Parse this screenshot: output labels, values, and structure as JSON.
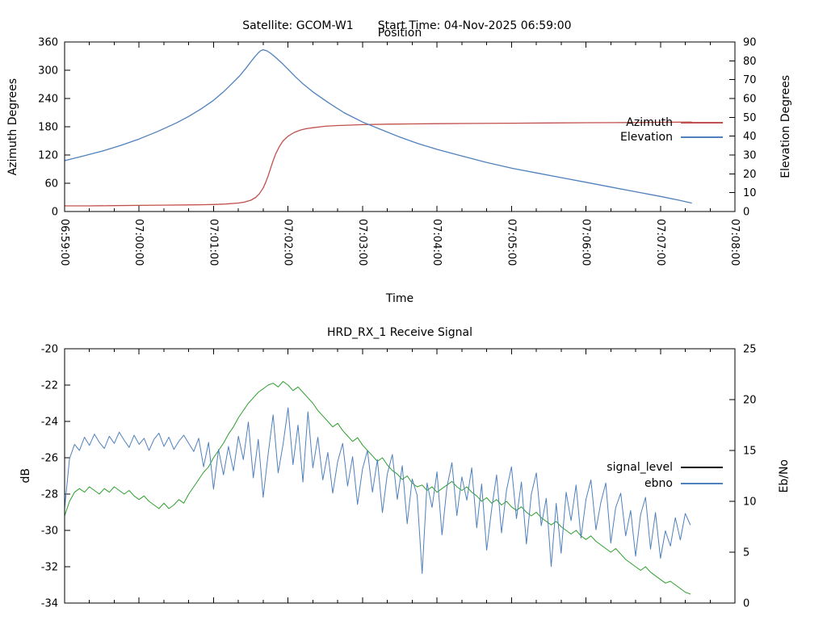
{
  "header": {
    "satellite_label": "Satellite: GCOM-W1",
    "start_time_label": "Start Time: 04-Nov-2025 06:59:00"
  },
  "colors": {
    "azimuth": "#c0504d",
    "elevation": "#4f81bd",
    "signal_level": "#2ca02c",
    "signal_level_legend": "#000000",
    "ebno": "#4f81bd",
    "axis": "#000000",
    "background": "#ffffff"
  },
  "chart_data": [
    {
      "type": "line",
      "title": "Position",
      "xlabel": "Time",
      "ylabel_left": "Azimuth Degrees",
      "ylabel_right": "Elevation Degrees",
      "x_range_seconds": [
        0,
        540
      ],
      "x_major_tick_seconds": 60,
      "x_minor_tick_seconds": 20,
      "x_tick_labels": [
        "06:59:00",
        "07:00:00",
        "07:01:00",
        "07:02:00",
        "07:03:00",
        "07:04:00",
        "07:05:00",
        "07:06:00",
        "07:07:00",
        "07:08:00"
      ],
      "show_x_tick_labels": true,
      "y_left_range": [
        0,
        360
      ],
      "y_left_ticks": [
        0,
        60,
        120,
        180,
        240,
        300,
        360
      ],
      "y_right_range": [
        0,
        90
      ],
      "y_right_ticks": [
        0,
        10,
        20,
        30,
        40,
        50,
        60,
        70,
        80,
        90
      ],
      "legend": [
        {
          "label": "Azimuth",
          "color": "#c0504d"
        },
        {
          "label": "Elevation",
          "color": "#4f81bd"
        }
      ],
      "series": [
        {
          "name": "Azimuth",
          "axis": "left",
          "color": "#c0504d",
          "points": [
            [
              0,
              12
            ],
            [
              20,
              12
            ],
            [
              40,
              12.5
            ],
            [
              60,
              13
            ],
            [
              80,
              13.5
            ],
            [
              100,
              14
            ],
            [
              110,
              14.4
            ],
            [
              120,
              15
            ],
            [
              130,
              16
            ],
            [
              140,
              18
            ],
            [
              145,
              20
            ],
            [
              150,
              24
            ],
            [
              154,
              30
            ],
            [
              157,
              38
            ],
            [
              160,
              50
            ],
            [
              162,
              62
            ],
            [
              164,
              76
            ],
            [
              166,
              92
            ],
            [
              168,
              108
            ],
            [
              170,
              122
            ],
            [
              173,
              138
            ],
            [
              176,
              150
            ],
            [
              180,
              160
            ],
            [
              185,
              168
            ],
            [
              190,
              173
            ],
            [
              195,
              176
            ],
            [
              200,
              178
            ],
            [
              210,
              181
            ],
            [
              220,
              182.5
            ],
            [
              230,
              183.5
            ],
            [
              240,
              184.5
            ],
            [
              260,
              185.5
            ],
            [
              280,
              186
            ],
            [
              300,
              186.5
            ],
            [
              330,
              187
            ],
            [
              360,
              187.5
            ],
            [
              390,
              188
            ],
            [
              420,
              188.5
            ],
            [
              450,
              189
            ],
            [
              480,
              189.5
            ],
            [
              505,
              190
            ]
          ]
        },
        {
          "name": "Elevation",
          "axis": "right",
          "color": "#4f81bd",
          "points": [
            [
              0,
              27
            ],
            [
              15,
              29.5
            ],
            [
              30,
              32
            ],
            [
              45,
              35
            ],
            [
              60,
              38.5
            ],
            [
              75,
              42.5
            ],
            [
              90,
              47
            ],
            [
              100,
              50.5
            ],
            [
              110,
              54.5
            ],
            [
              120,
              59
            ],
            [
              128,
              63.5
            ],
            [
              135,
              68
            ],
            [
              141,
              72
            ],
            [
              146,
              76
            ],
            [
              150,
              79.5
            ],
            [
              153,
              82
            ],
            [
              156,
              84.2
            ],
            [
              158,
              85.4
            ],
            [
              160,
              85.9
            ],
            [
              163,
              85.3
            ],
            [
              166,
              84
            ],
            [
              170,
              81.8
            ],
            [
              175,
              78.8
            ],
            [
              180,
              75.5
            ],
            [
              186,
              71.5
            ],
            [
              192,
              67.8
            ],
            [
              200,
              63.5
            ],
            [
              212,
              58
            ],
            [
              225,
              52.5
            ],
            [
              240,
              47.5
            ],
            [
              255,
              43.5
            ],
            [
              270,
              39.5
            ],
            [
              285,
              36
            ],
            [
              300,
              33
            ],
            [
              320,
              29.5
            ],
            [
              340,
              26
            ],
            [
              360,
              23
            ],
            [
              380,
              20.5
            ],
            [
              400,
              18
            ],
            [
              420,
              15.5
            ],
            [
              440,
              13
            ],
            [
              460,
              10.5
            ],
            [
              480,
              8
            ],
            [
              495,
              6
            ],
            [
              505,
              4.5
            ]
          ]
        }
      ]
    },
    {
      "type": "line",
      "title": "HRD_RX_1 Receive Signal",
      "xlabel": "",
      "ylabel_left": "dB",
      "ylabel_right": "Eb/No",
      "x_range_seconds": [
        0,
        540
      ],
      "x_major_tick_seconds": 60,
      "x_minor_tick_seconds": 20,
      "x_tick_labels": [],
      "show_x_tick_labels": false,
      "y_left_range": [
        -34,
        -20
      ],
      "y_left_ticks": [
        -34,
        -32,
        -30,
        -28,
        -26,
        -24,
        -22,
        -20
      ],
      "y_right_range": [
        0,
        25
      ],
      "y_right_ticks": [
        0,
        5,
        10,
        15,
        20,
        25
      ],
      "legend": [
        {
          "label": "signal_level",
          "color": "#000000"
        },
        {
          "label": "ebno",
          "color": "#4f81bd"
        }
      ],
      "series": [
        {
          "name": "signal_level",
          "axis": "left",
          "color": "#2ca02c",
          "t0": 0,
          "dt": 4,
          "values": [
            -29.2,
            -28.4,
            -27.9,
            -27.7,
            -27.9,
            -27.6,
            -27.8,
            -28.0,
            -27.7,
            -27.9,
            -27.6,
            -27.8,
            -28.0,
            -27.8,
            -28.1,
            -28.3,
            -28.1,
            -28.4,
            -28.6,
            -28.8,
            -28.5,
            -28.8,
            -28.6,
            -28.3,
            -28.5,
            -28.0,
            -27.6,
            -27.2,
            -26.8,
            -26.5,
            -26.0,
            -25.6,
            -25.2,
            -24.7,
            -24.3,
            -23.8,
            -23.4,
            -23.0,
            -22.7,
            -22.4,
            -22.2,
            -22.0,
            -21.9,
            -22.1,
            -21.8,
            -22.0,
            -22.3,
            -22.1,
            -22.4,
            -22.7,
            -23.0,
            -23.4,
            -23.7,
            -24.0,
            -24.3,
            -24.1,
            -24.5,
            -24.8,
            -25.1,
            -24.9,
            -25.3,
            -25.6,
            -25.9,
            -26.2,
            -26.0,
            -26.4,
            -26.7,
            -26.9,
            -27.2,
            -27.0,
            -27.4,
            -27.6,
            -27.5,
            -27.8,
            -27.6,
            -27.9,
            -27.7,
            -27.5,
            -27.3,
            -27.6,
            -27.8,
            -27.6,
            -27.9,
            -28.1,
            -28.4,
            -28.2,
            -28.5,
            -28.3,
            -28.6,
            -28.4,
            -28.7,
            -28.9,
            -28.7,
            -29.0,
            -29.2,
            -29.0,
            -29.3,
            -29.5,
            -29.7,
            -29.5,
            -29.8,
            -30.0,
            -30.2,
            -30.0,
            -30.3,
            -30.5,
            -30.3,
            -30.6,
            -30.8,
            -31.0,
            -31.2,
            -31.0,
            -31.3,
            -31.6,
            -31.8,
            -32.0,
            -32.2,
            -32.0,
            -32.3,
            -32.5,
            -32.7,
            -32.9,
            -32.8,
            -33.0,
            -33.2,
            -33.4,
            -33.5
          ]
        },
        {
          "name": "ebno",
          "axis": "right",
          "color": "#4f81bd",
          "t0": 0,
          "dt": 4,
          "values": [
            9.3,
            14.2,
            15.6,
            15.0,
            16.3,
            15.5,
            16.6,
            15.8,
            15.2,
            16.4,
            15.7,
            16.8,
            16.0,
            15.3,
            16.5,
            15.6,
            16.2,
            15.0,
            16.1,
            16.7,
            15.4,
            16.3,
            15.1,
            15.9,
            16.5,
            15.7,
            14.9,
            16.2,
            13.4,
            15.8,
            11.2,
            15.1,
            12.6,
            15.4,
            13.0,
            16.4,
            14.1,
            17.8,
            12.3,
            16.1,
            10.4,
            14.7,
            18.5,
            12.8,
            15.6,
            19.2,
            13.6,
            17.5,
            11.9,
            18.8,
            13.3,
            16.3,
            12.1,
            14.8,
            10.8,
            13.9,
            15.7,
            11.5,
            14.4,
            9.7,
            13.2,
            15.0,
            10.9,
            14.1,
            8.9,
            12.7,
            14.6,
            10.2,
            13.5,
            7.8,
            12.2,
            10.6,
            2.9,
            11.8,
            9.4,
            12.9,
            6.7,
            11.4,
            13.8,
            8.6,
            12.4,
            10.1,
            13.3,
            7.4,
            11.7,
            5.2,
            9.2,
            12.6,
            6.9,
            11.1,
            13.4,
            8.3,
            11.9,
            5.8,
            10.7,
            12.8,
            7.6,
            10.3,
            3.6,
            9.8,
            4.9,
            10.9,
            8.1,
            11.6,
            6.4,
            10.2,
            12.1,
            7.2,
            9.9,
            11.8,
            5.9,
            9.4,
            10.8,
            6.6,
            9.1,
            4.6,
            8.7,
            10.4,
            5.3,
            8.9,
            4.4,
            7.1,
            5.6,
            8.4,
            6.2,
            8.8,
            7.7
          ]
        }
      ]
    }
  ]
}
